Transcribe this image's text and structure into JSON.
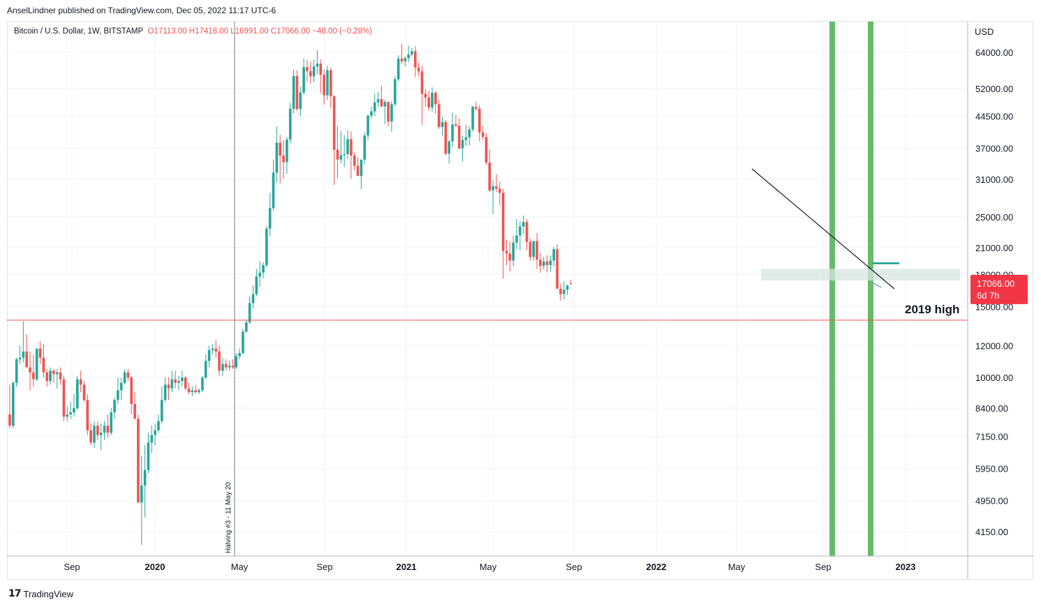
{
  "publisher_line": "AnselLindner published on TradingView.com, Dec 05, 2022 11:17 UTC-6",
  "legend": {
    "symbol": "Bitcoin / U.S. Dollar, 1W, BITSTAMP",
    "ohlc": "O17113.00  H17418.00  L16991.00  C17066.00  −48.00 (−0.28%)"
  },
  "brand": {
    "logo": "17",
    "name": "TradingView"
  },
  "colors": {
    "up": "#26a69a",
    "down": "#ef5350",
    "highlight": "#4caf50",
    "line_2019": "#ef5350",
    "zone": "#d7e6e2",
    "teal_level": "#0f9b8e",
    "price_badge": "#f23645"
  },
  "chart_data": {
    "type": "candlestick",
    "currency_label": "USD",
    "y_scale": "log",
    "price_ticks": [
      "64000.00",
      "52000.00",
      "44500.00",
      "37000.00",
      "31000.00",
      "25000.00",
      "21000.00",
      "18000.00",
      "15000.00",
      "12000.00",
      "10000.00",
      "8400.00",
      "7150.00",
      "5950.00",
      "4950.00",
      "4150.00"
    ],
    "time_ticks": [
      {
        "label": "Sep",
        "bold": false
      },
      {
        "label": "2020",
        "bold": true
      },
      {
        "label": "May",
        "bold": false
      },
      {
        "label": "Sep",
        "bold": false
      },
      {
        "label": "2021",
        "bold": true
      },
      {
        "label": "May",
        "bold": false
      },
      {
        "label": "Sep",
        "bold": false
      },
      {
        "label": "2022",
        "bold": true
      },
      {
        "label": "May",
        "bold": false
      },
      {
        "label": "Sep",
        "bold": false
      },
      {
        "label": "2023",
        "bold": true
      }
    ],
    "current_price": {
      "value": "17066.00",
      "countdown": "6d 7h"
    },
    "annotations": {
      "halving_label": "Halving #3 - 11 May 20",
      "level_label": "2019 high",
      "level_value": 13880,
      "zone_range": [
        17400,
        18600
      ],
      "teal_level": 19200
    },
    "candles": [
      [
        8100,
        9600,
        7500,
        7600
      ],
      [
        7600,
        9800,
        7500,
        9700
      ],
      [
        9700,
        11200,
        9500,
        11100
      ],
      [
        11100,
        12000,
        10800,
        11200
      ],
      [
        11200,
        13800,
        10900,
        11600
      ],
      [
        11600,
        12800,
        10800,
        10600
      ],
      [
        10600,
        11600,
        9300,
        10300
      ],
      [
        10300,
        11400,
        9500,
        9900
      ],
      [
        9900,
        11600,
        9800,
        11800
      ],
      [
        11800,
        12300,
        10800,
        11200
      ],
      [
        11200,
        12100,
        10000,
        10300
      ],
      [
        10300,
        10500,
        9500,
        9800
      ],
      [
        9800,
        10600,
        9600,
        10400
      ],
      [
        10400,
        10500,
        9700,
        10200
      ],
      [
        10200,
        10500,
        9400,
        10300
      ],
      [
        10300,
        10600,
        9600,
        9900
      ],
      [
        9900,
        10100,
        7800,
        8000
      ],
      [
        8000,
        8500,
        7800,
        8100
      ],
      [
        8100,
        8700,
        7900,
        8200
      ],
      [
        8200,
        9100,
        8000,
        8400
      ],
      [
        8400,
        10100,
        8300,
        9900
      ],
      [
        9900,
        10400,
        9200,
        9600
      ],
      [
        9600,
        9800,
        8700,
        8800
      ],
      [
        8800,
        9100,
        7200,
        7400
      ],
      [
        7400,
        7700,
        6800,
        6900
      ],
      [
        6900,
        7800,
        6700,
        7600
      ],
      [
        7600,
        7800,
        7000,
        7200
      ],
      [
        7200,
        7700,
        6600,
        7300
      ],
      [
        7300,
        7800,
        7000,
        7600
      ],
      [
        7600,
        8100,
        7100,
        7300
      ],
      [
        7300,
        8400,
        7200,
        8200
      ],
      [
        8200,
        8900,
        7900,
        8800
      ],
      [
        8800,
        10000,
        8600,
        9300
      ],
      [
        9300,
        10000,
        8800,
        9700
      ],
      [
        9700,
        10500,
        9600,
        10300
      ],
      [
        10300,
        10500,
        9800,
        10000
      ],
      [
        10000,
        10100,
        8100,
        8600
      ],
      [
        8600,
        9200,
        8000,
        7900
      ],
      [
        7900,
        8100,
        5000,
        4900
      ],
      [
        4900,
        6400,
        3850,
        5400
      ],
      [
        5400,
        6800,
        4500,
        5900
      ],
      [
        5900,
        7300,
        5800,
        6900
      ],
      [
        6900,
        7600,
        6500,
        7200
      ],
      [
        7200,
        7700,
        6800,
        7400
      ],
      [
        7400,
        8100,
        7300,
        7800
      ],
      [
        7800,
        9500,
        7700,
        8800
      ],
      [
        8800,
        10000,
        8700,
        9600
      ],
      [
        9600,
        10000,
        8800,
        9400
      ],
      [
        9400,
        10400,
        9200,
        9900
      ],
      [
        9900,
        10400,
        9400,
        9700
      ],
      [
        9700,
        10100,
        9300,
        9800
      ],
      [
        9800,
        10400,
        9500,
        10000
      ],
      [
        10000,
        10100,
        9300,
        9400
      ],
      [
        9400,
        9700,
        9100,
        9200
      ],
      [
        9200,
        9500,
        9000,
        9300
      ],
      [
        9300,
        9600,
        9100,
        9200
      ],
      [
        9200,
        9400,
        9100,
        9300
      ],
      [
        9300,
        10100,
        9200,
        10000
      ],
      [
        10000,
        11400,
        9900,
        11000
      ],
      [
        11000,
        12000,
        10600,
        11700
      ],
      [
        11700,
        12100,
        11400,
        11800
      ],
      [
        11800,
        12400,
        11200,
        11600
      ],
      [
        11600,
        12000,
        10100,
        10400
      ],
      [
        10400,
        11200,
        10100,
        10800
      ],
      [
        10800,
        11100,
        10400,
        10600
      ],
      [
        10600,
        11000,
        10400,
        10700
      ],
      [
        10700,
        11100,
        10500,
        10600
      ],
      [
        10600,
        11500,
        10500,
        11300
      ],
      [
        11300,
        11800,
        11100,
        11500
      ],
      [
        11500,
        13200,
        11400,
        13000
      ],
      [
        13000,
        13900,
        12900,
        13700
      ],
      [
        13700,
        15900,
        13600,
        15300
      ],
      [
        15300,
        16900,
        14800,
        16100
      ],
      [
        16100,
        18600,
        15900,
        17800
      ],
      [
        17800,
        19400,
        16800,
        18200
      ],
      [
        18200,
        19300,
        17600,
        19000
      ],
      [
        19000,
        23800,
        18800,
        23400
      ],
      [
        23400,
        28700,
        22400,
        26300
      ],
      [
        26300,
        34700,
        26000,
        32200
      ],
      [
        32200,
        41900,
        30500,
        38200
      ],
      [
        38200,
        40000,
        30300,
        35500
      ],
      [
        35500,
        38700,
        31100,
        34200
      ],
      [
        34200,
        39500,
        32000,
        38900
      ],
      [
        38900,
        48000,
        38000,
        46400
      ],
      [
        46400,
        58000,
        45200,
        55900
      ],
      [
        55900,
        57800,
        45800,
        46300
      ],
      [
        46300,
        52600,
        44500,
        50900
      ],
      [
        50900,
        61800,
        50200,
        58800
      ],
      [
        58800,
        61300,
        54200,
        57500
      ],
      [
        57500,
        60700,
        53500,
        55800
      ],
      [
        55800,
        61300,
        54000,
        59000
      ],
      [
        59000,
        64800,
        56500,
        60000
      ],
      [
        60000,
        61500,
        50700,
        56300
      ],
      [
        56300,
        58000,
        47500,
        50100
      ],
      [
        50100,
        59300,
        48800,
        57800
      ],
      [
        57800,
        58700,
        46600,
        49800
      ],
      [
        49800,
        50100,
        30000,
        36700
      ],
      [
        36700,
        42000,
        31200,
        34700
      ],
      [
        34700,
        40800,
        33900,
        35600
      ],
      [
        35600,
        39900,
        33300,
        35800
      ],
      [
        35800,
        41000,
        34800,
        39000
      ],
      [
        39000,
        40700,
        31100,
        35500
      ],
      [
        35500,
        36100,
        32600,
        33500
      ],
      [
        33500,
        35100,
        31600,
        31600
      ],
      [
        31600,
        34500,
        29300,
        34700
      ],
      [
        34700,
        40500,
        33700,
        39800
      ],
      [
        39800,
        44800,
        38900,
        44600
      ],
      [
        44600,
        47000,
        43900,
        45700
      ],
      [
        45700,
        50500,
        44500,
        48100
      ],
      [
        48100,
        51000,
        46700,
        49000
      ],
      [
        49000,
        52900,
        46800,
        47000
      ],
      [
        47000,
        48800,
        42500,
        48200
      ],
      [
        48200,
        48300,
        42000,
        43100
      ],
      [
        43100,
        48400,
        40600,
        47600
      ],
      [
        47600,
        55800,
        47100,
        54900
      ],
      [
        54900,
        62900,
        54300,
        61700
      ],
      [
        61700,
        67100,
        59800,
        60800
      ],
      [
        60800,
        62500,
        59000,
        61900
      ],
      [
        61900,
        66500,
        60500,
        63200
      ],
      [
        63200,
        65600,
        62500,
        64400
      ],
      [
        64400,
        66200,
        55600,
        58700
      ],
      [
        58700,
        60300,
        55800,
        57400
      ],
      [
        57400,
        59400,
        42300,
        50500
      ],
      [
        50500,
        51900,
        47000,
        49500
      ],
      [
        49500,
        51400,
        45800,
        46700
      ],
      [
        46700,
        52400,
        45600,
        50800
      ],
      [
        50800,
        51300,
        45100,
        47600
      ],
      [
        47600,
        48800,
        41300,
        41800
      ],
      [
        41800,
        44300,
        39800,
        43000
      ],
      [
        43000,
        43500,
        35500,
        35900
      ],
      [
        35900,
        38800,
        33900,
        38500
      ],
      [
        38500,
        45400,
        37300,
        42400
      ],
      [
        42400,
        44800,
        41800,
        42100
      ],
      [
        42100,
        43900,
        36800,
        37000
      ],
      [
        37000,
        39800,
        34300,
        38800
      ],
      [
        38800,
        42300,
        37500,
        39400
      ],
      [
        39400,
        42000,
        37600,
        41200
      ],
      [
        41200,
        47200,
        40700,
        46900
      ],
      [
        46900,
        48200,
        45800,
        46400
      ],
      [
        46400,
        47400,
        38500,
        40500
      ],
      [
        40500,
        42000,
        38900,
        39500
      ],
      [
        39500,
        40300,
        33700,
        34100
      ],
      [
        34100,
        36800,
        28800,
        29100
      ],
      [
        29100,
        30900,
        25400,
        29800
      ],
      [
        29800,
        31900,
        28800,
        29400
      ],
      [
        29400,
        30600,
        26800,
        28700
      ],
      [
        28700,
        29400,
        17600,
        20600
      ],
      [
        20600,
        22000,
        19000,
        20300
      ],
      [
        20300,
        21800,
        18300,
        19500
      ],
      [
        19500,
        22500,
        18900,
        21600
      ],
      [
        21600,
        24700,
        20800,
        22500
      ],
      [
        22500,
        24400,
        20700,
        23700
      ],
      [
        23700,
        25200,
        22700,
        24300
      ],
      [
        24300,
        24700,
        20700,
        21700
      ],
      [
        21700,
        22100,
        19500,
        19900
      ],
      [
        19900,
        21800,
        19500,
        21800
      ],
      [
        21800,
        22800,
        18600,
        19600
      ],
      [
        19600,
        20400,
        18200,
        18900
      ],
      [
        18900,
        19900,
        18500,
        19400
      ],
      [
        19400,
        20100,
        18200,
        19000
      ],
      [
        19000,
        20100,
        18300,
        19500
      ],
      [
        19500,
        21100,
        18900,
        20800
      ],
      [
        20800,
        21400,
        17200,
        16600
      ],
      [
        16600,
        17100,
        15500,
        16100
      ],
      [
        16100,
        17300,
        15600,
        16500
      ],
      [
        16500,
        17000,
        16000,
        16900
      ],
      [
        17113,
        17418,
        16991,
        17066
      ]
    ]
  }
}
